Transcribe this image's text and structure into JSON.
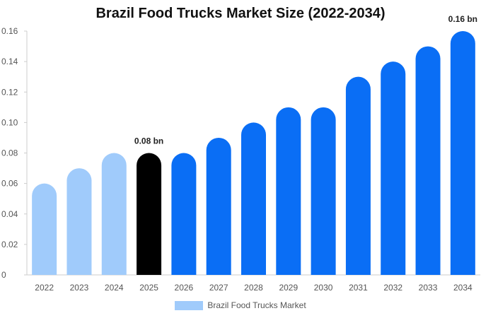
{
  "chart_data": {
    "type": "bar",
    "title": "Brazil Food Trucks Market Size (2022-2034)",
    "xlabel": "",
    "ylabel": "",
    "categories": [
      "2022",
      "2023",
      "2024",
      "2025",
      "2026",
      "2027",
      "2028",
      "2029",
      "2030",
      "2031",
      "2032",
      "2033",
      "2034"
    ],
    "series": [
      {
        "name": "Brazil Food Trucks Market",
        "values": [
          0.06,
          0.07,
          0.08,
          0.08,
          0.08,
          0.09,
          0.1,
          0.11,
          0.11,
          0.13,
          0.14,
          0.15,
          0.16
        ]
      }
    ],
    "ylim": [
      0,
      0.16
    ],
    "yticks": [
      "0",
      "0.02",
      "0.04",
      "0.06",
      "0.08",
      "0.10",
      "0.12",
      "0.14",
      "0.16"
    ],
    "annotations": [
      {
        "category": "2025",
        "text": "0.08 bn"
      },
      {
        "category": "2034",
        "text": "0.16 bn"
      }
    ],
    "bar_colors": {
      "historical": "#a0cbfb",
      "current": "#000000",
      "forecast": "#0a6ef5"
    },
    "grid": false,
    "legend_position": "bottom"
  }
}
